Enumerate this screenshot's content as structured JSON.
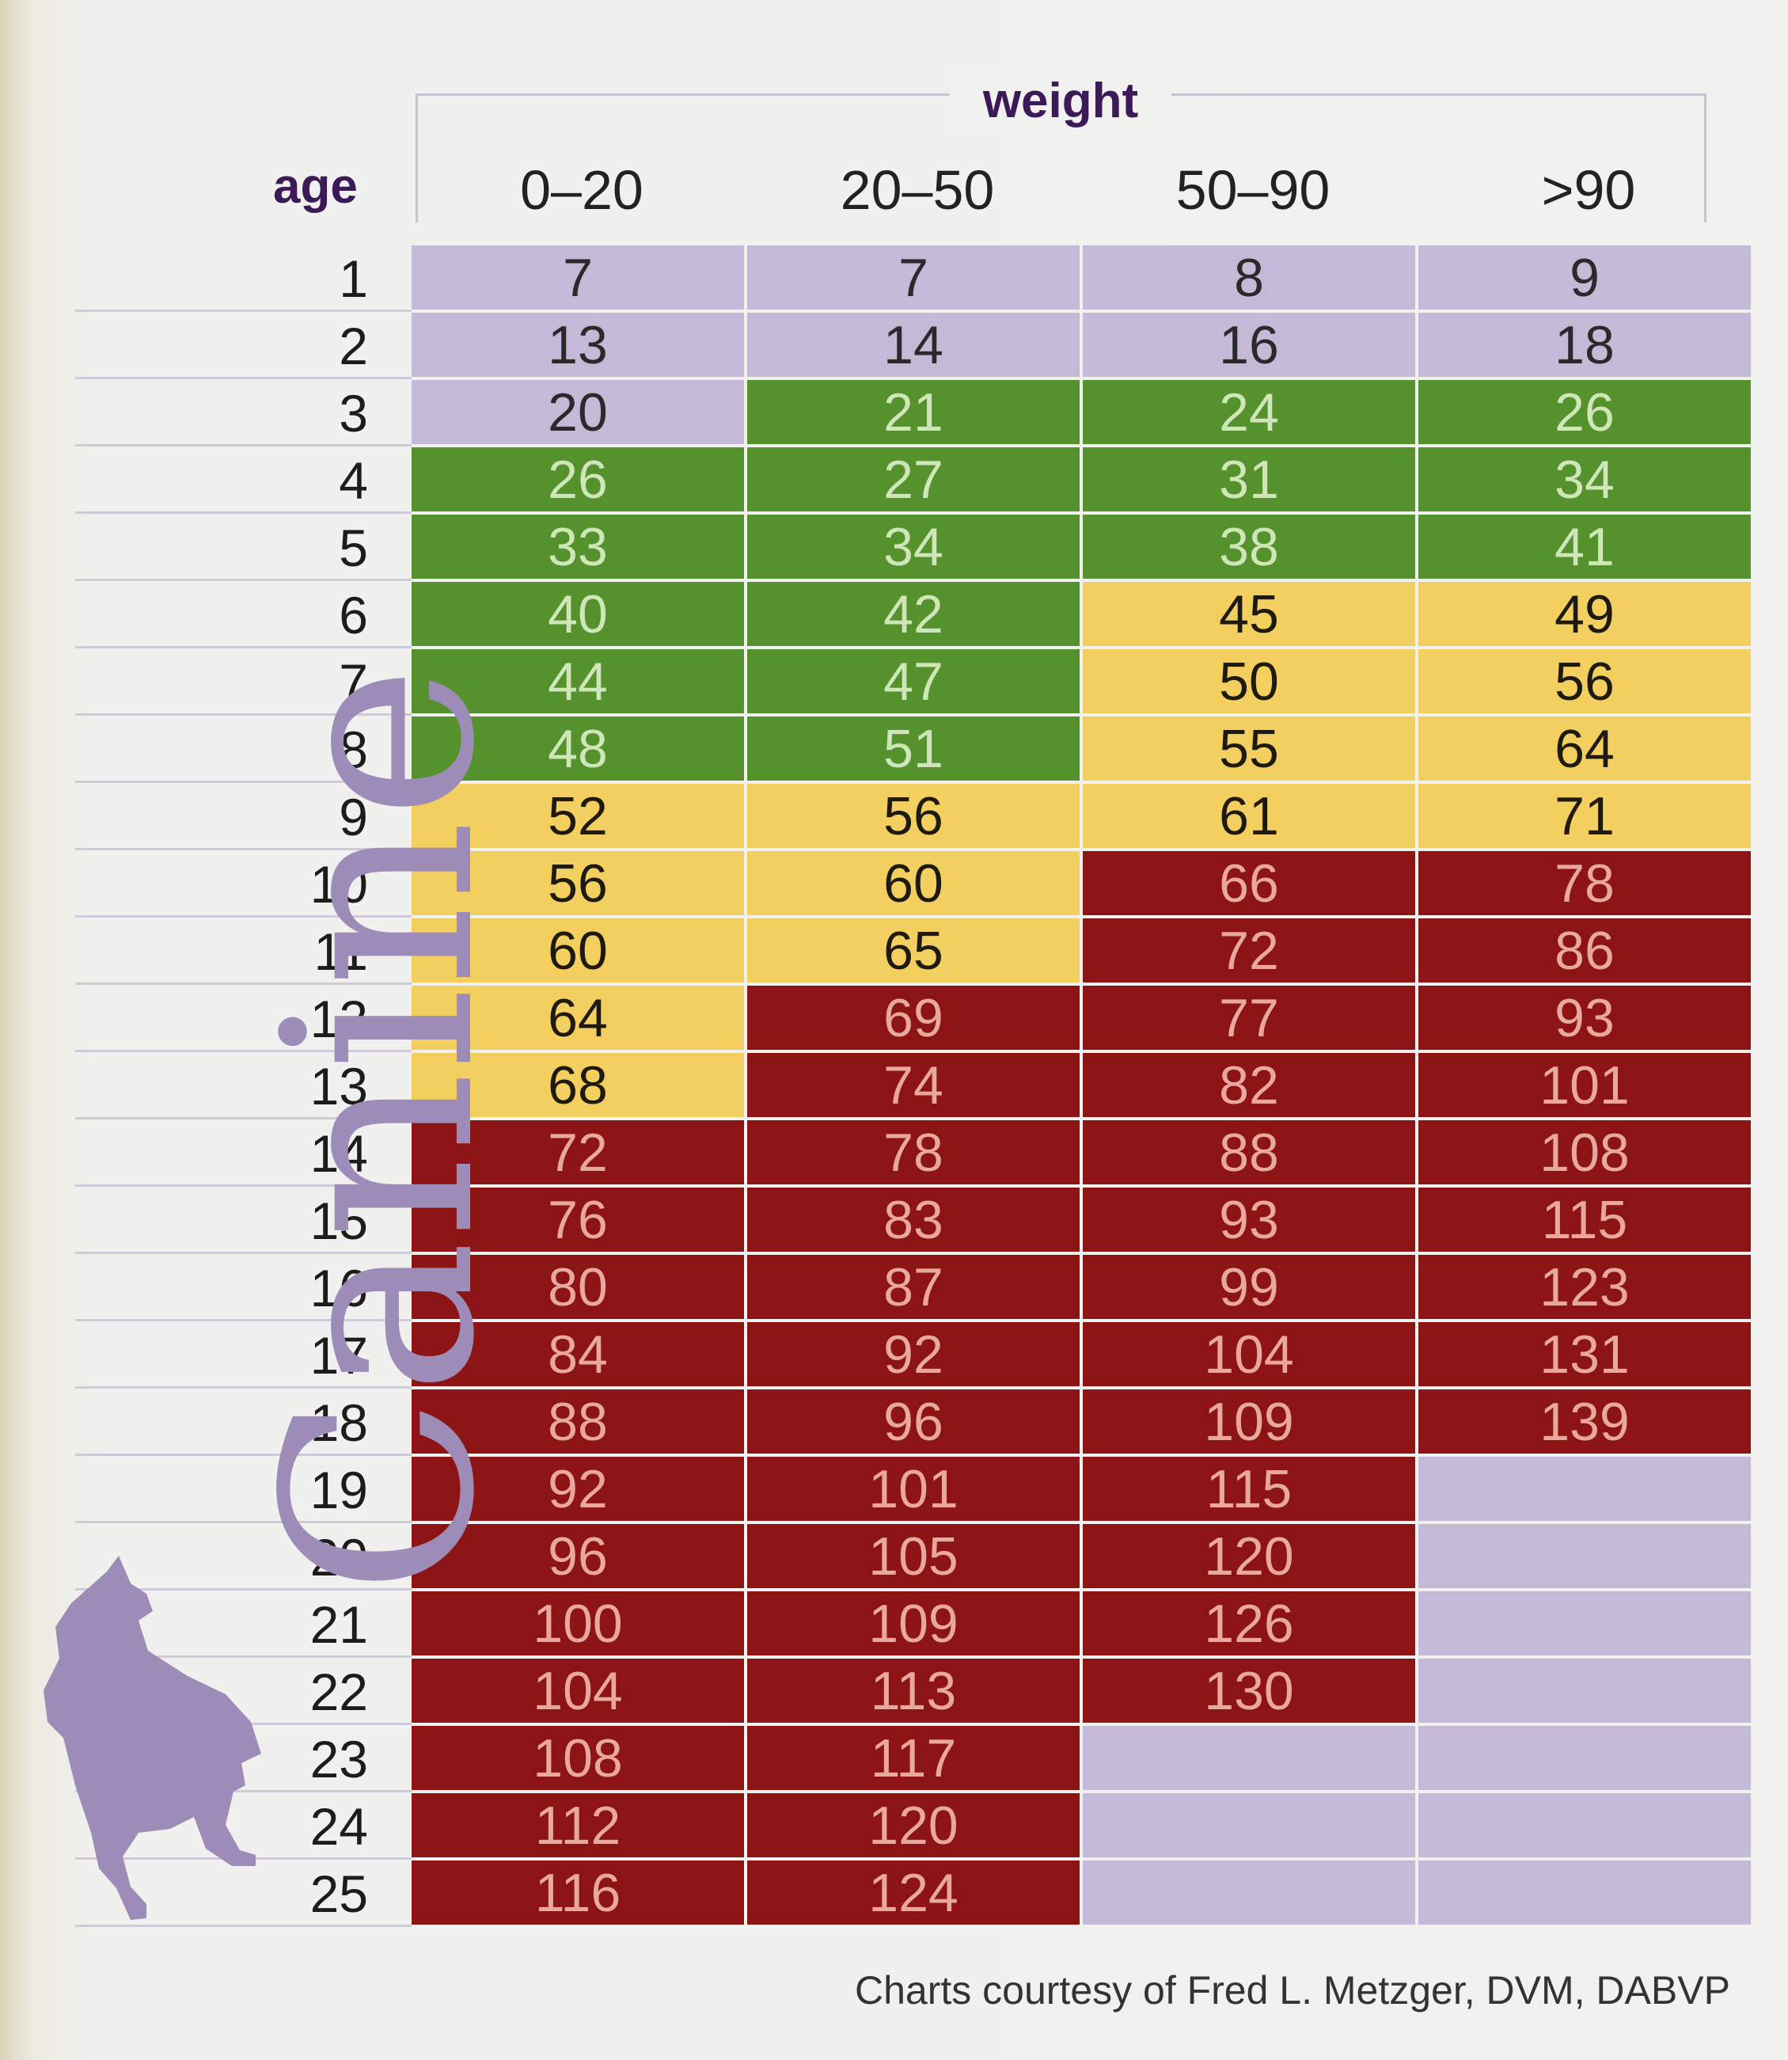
{
  "chart_data": {
    "type": "table",
    "title": "Canine",
    "column_group_label": "weight",
    "row_header_label": "age",
    "columns": [
      "0–20",
      "20–50",
      "50–90",
      ">90"
    ],
    "ages": [
      1,
      2,
      3,
      4,
      5,
      6,
      7,
      8,
      9,
      10,
      11,
      12,
      13,
      14,
      15,
      16,
      17,
      18,
      19,
      20,
      21,
      22,
      23,
      24,
      25
    ],
    "values": [
      [
        7,
        7,
        8,
        9
      ],
      [
        13,
        14,
        16,
        18
      ],
      [
        20,
        21,
        24,
        26
      ],
      [
        26,
        27,
        31,
        34
      ],
      [
        33,
        34,
        38,
        41
      ],
      [
        40,
        42,
        45,
        49
      ],
      [
        44,
        47,
        50,
        56
      ],
      [
        48,
        51,
        55,
        64
      ],
      [
        52,
        56,
        61,
        71
      ],
      [
        56,
        60,
        66,
        78
      ],
      [
        60,
        65,
        72,
        86
      ],
      [
        64,
        69,
        77,
        93
      ],
      [
        68,
        74,
        82,
        101
      ],
      [
        72,
        78,
        88,
        108
      ],
      [
        76,
        83,
        93,
        115
      ],
      [
        80,
        87,
        99,
        123
      ],
      [
        84,
        92,
        104,
        131
      ],
      [
        88,
        96,
        109,
        139
      ],
      [
        92,
        101,
        115,
        null
      ],
      [
        96,
        105,
        120,
        null
      ],
      [
        100,
        109,
        126,
        null
      ],
      [
        104,
        113,
        130,
        null
      ],
      [
        108,
        117,
        null,
        null
      ],
      [
        112,
        120,
        null,
        null
      ],
      [
        116,
        124,
        null,
        null
      ]
    ],
    "cell_colors": [
      [
        "purple",
        "purple",
        "purple",
        "purple"
      ],
      [
        "purple",
        "purple",
        "purple",
        "purple"
      ],
      [
        "purple",
        "green",
        "green",
        "green"
      ],
      [
        "green",
        "green",
        "green",
        "green"
      ],
      [
        "green",
        "green",
        "green",
        "green"
      ],
      [
        "green",
        "green",
        "yellow",
        "yellow"
      ],
      [
        "green",
        "green",
        "yellow",
        "yellow"
      ],
      [
        "green",
        "green",
        "yellow",
        "yellow"
      ],
      [
        "yellow",
        "yellow",
        "yellow",
        "yellow"
      ],
      [
        "yellow",
        "yellow",
        "red",
        "red"
      ],
      [
        "yellow",
        "yellow",
        "red",
        "red"
      ],
      [
        "yellow",
        "red",
        "red",
        "red"
      ],
      [
        "yellow",
        "red",
        "red",
        "red"
      ],
      [
        "red",
        "red",
        "red",
        "red"
      ],
      [
        "red",
        "red",
        "red",
        "red"
      ],
      [
        "red",
        "red",
        "red",
        "red"
      ],
      [
        "red",
        "red",
        "red",
        "red"
      ],
      [
        "red",
        "red",
        "red",
        "red"
      ],
      [
        "red",
        "red",
        "red",
        "purple"
      ],
      [
        "red",
        "red",
        "red",
        "purple"
      ],
      [
        "red",
        "red",
        "red",
        "purple"
      ],
      [
        "red",
        "red",
        "red",
        "purple"
      ],
      [
        "red",
        "red",
        "purple",
        "purple"
      ],
      [
        "red",
        "red",
        "purple",
        "purple"
      ],
      [
        "red",
        "red",
        "purple",
        "purple"
      ]
    ],
    "palette": {
      "purple": "#c5b9d8",
      "green": "#55912c",
      "yellow": "#f2cf5e",
      "red": "#8d1414"
    }
  },
  "credit": "Charts courtesy of Fred L. Metzger, DVM, DABVP",
  "icons": {
    "dog": "dog-silhouette-icon"
  }
}
